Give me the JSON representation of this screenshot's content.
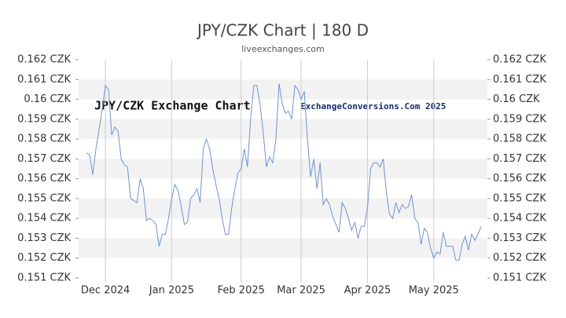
{
  "chart_data": {
    "type": "line",
    "title": "JPY/CZK Chart | 180 D",
    "subtitle": "liveexchanges.com",
    "annotations": [
      "JPY/CZK Exchange Chart",
      "ExchangeConversions.Com 2025"
    ],
    "categories": [
      null,
      null,
      null,
      null,
      null,
      null,
      "Dec 2024",
      null,
      null,
      null,
      null,
      null,
      null,
      null,
      null,
      null,
      null,
      null,
      null,
      null,
      null,
      null,
      null,
      null,
      null,
      null,
      null,
      "Jan 2025",
      null,
      null,
      null,
      null,
      null,
      null,
      null,
      null,
      null,
      null,
      null,
      null,
      null,
      null,
      null,
      null,
      null,
      null,
      null,
      null,
      null,
      "Feb 2025",
      null,
      null,
      null,
      null,
      null,
      null,
      null,
      null,
      null,
      null,
      null,
      null,
      null,
      null,
      null,
      null,
      null,
      null,
      "Mar 2025",
      null,
      null,
      null,
      null,
      null,
      null,
      null,
      null,
      null,
      null,
      null,
      null,
      null,
      null,
      null,
      null,
      null,
      null,
      null,
      null,
      "Apr 2025",
      null,
      null,
      null,
      null,
      null,
      null,
      null,
      null,
      null,
      null,
      null,
      null,
      null,
      null,
      null,
      null,
      null,
      null,
      null,
      null,
      "May 2025",
      null,
      null,
      null,
      null,
      null,
      null,
      null,
      null,
      null,
      null,
      null,
      null,
      null,
      null,
      null
    ],
    "series": [
      {
        "name": "JPY/CZK",
        "color": "#6f92d4",
        "values": [
          0.1573,
          0.1572,
          0.1562,
          0.1575,
          0.1585,
          0.1595,
          0.1607,
          0.1605,
          0.1582,
          0.1586,
          0.1584,
          0.157,
          0.1567,
          0.1566,
          0.155,
          0.1549,
          0.1548,
          0.156,
          0.1555,
          0.1539,
          0.154,
          0.1539,
          0.1537,
          0.1526,
          0.1532,
          0.1532,
          0.154,
          0.155,
          0.1557,
          0.1554,
          0.1546,
          0.1537,
          0.1538,
          0.155,
          0.1552,
          0.1555,
          0.1548,
          0.1575,
          0.158,
          0.1575,
          0.1565,
          0.1557,
          0.155,
          0.154,
          0.1532,
          0.1532,
          0.1545,
          0.1555,
          0.1563,
          0.1565,
          0.1575,
          0.1566,
          0.159,
          0.1607,
          0.1607,
          0.1597,
          0.1583,
          0.1566,
          0.1571,
          0.1568,
          0.158,
          0.1608,
          0.1598,
          0.1593,
          0.1594,
          0.159,
          0.1607,
          0.1605,
          0.16,
          0.1604,
          0.158,
          0.1561,
          0.157,
          0.1555,
          0.1568,
          0.1547,
          0.155,
          0.1547,
          0.1541,
          0.1537,
          0.1533,
          0.1548,
          0.1545,
          0.154,
          0.1534,
          0.1538,
          0.153,
          0.1536,
          0.1536,
          0.1545,
          0.1565,
          0.1568,
          0.1568,
          0.1566,
          0.157,
          0.1553,
          0.1542,
          0.154,
          0.1548,
          0.1543,
          0.1547,
          0.1545,
          0.1546,
          0.1552,
          0.154,
          0.1538,
          0.1527,
          0.1535,
          0.1533,
          0.1525,
          0.152,
          0.1523,
          0.1522,
          0.1533,
          0.1526,
          0.1526,
          0.1526,
          0.1519,
          0.1519,
          0.1527,
          0.1531,
          0.1524,
          0.1532,
          0.1529,
          0.1532,
          0.1536
        ]
      }
    ],
    "ylim": [
      0.151,
      0.162
    ],
    "yticks": [
      {
        "value": 0.151,
        "label": "0.151 CZK"
      },
      {
        "value": 0.152,
        "label": "0.152 CZK"
      },
      {
        "value": 0.153,
        "label": "0.153 CZK"
      },
      {
        "value": 0.154,
        "label": "0.154 CZK"
      },
      {
        "value": 0.155,
        "label": "0.155 CZK"
      },
      {
        "value": 0.156,
        "label": "0.156 CZK"
      },
      {
        "value": 0.157,
        "label": "0.157 CZK"
      },
      {
        "value": 0.158,
        "label": "0.158 CZK"
      },
      {
        "value": 0.159,
        "label": "0.159 CZK"
      },
      {
        "value": 0.16,
        "label": "0.16 CZK"
      },
      {
        "value": 0.161,
        "label": "0.161 CZK"
      },
      {
        "value": 0.162,
        "label": "0.162 CZK"
      }
    ],
    "grid": true
  }
}
